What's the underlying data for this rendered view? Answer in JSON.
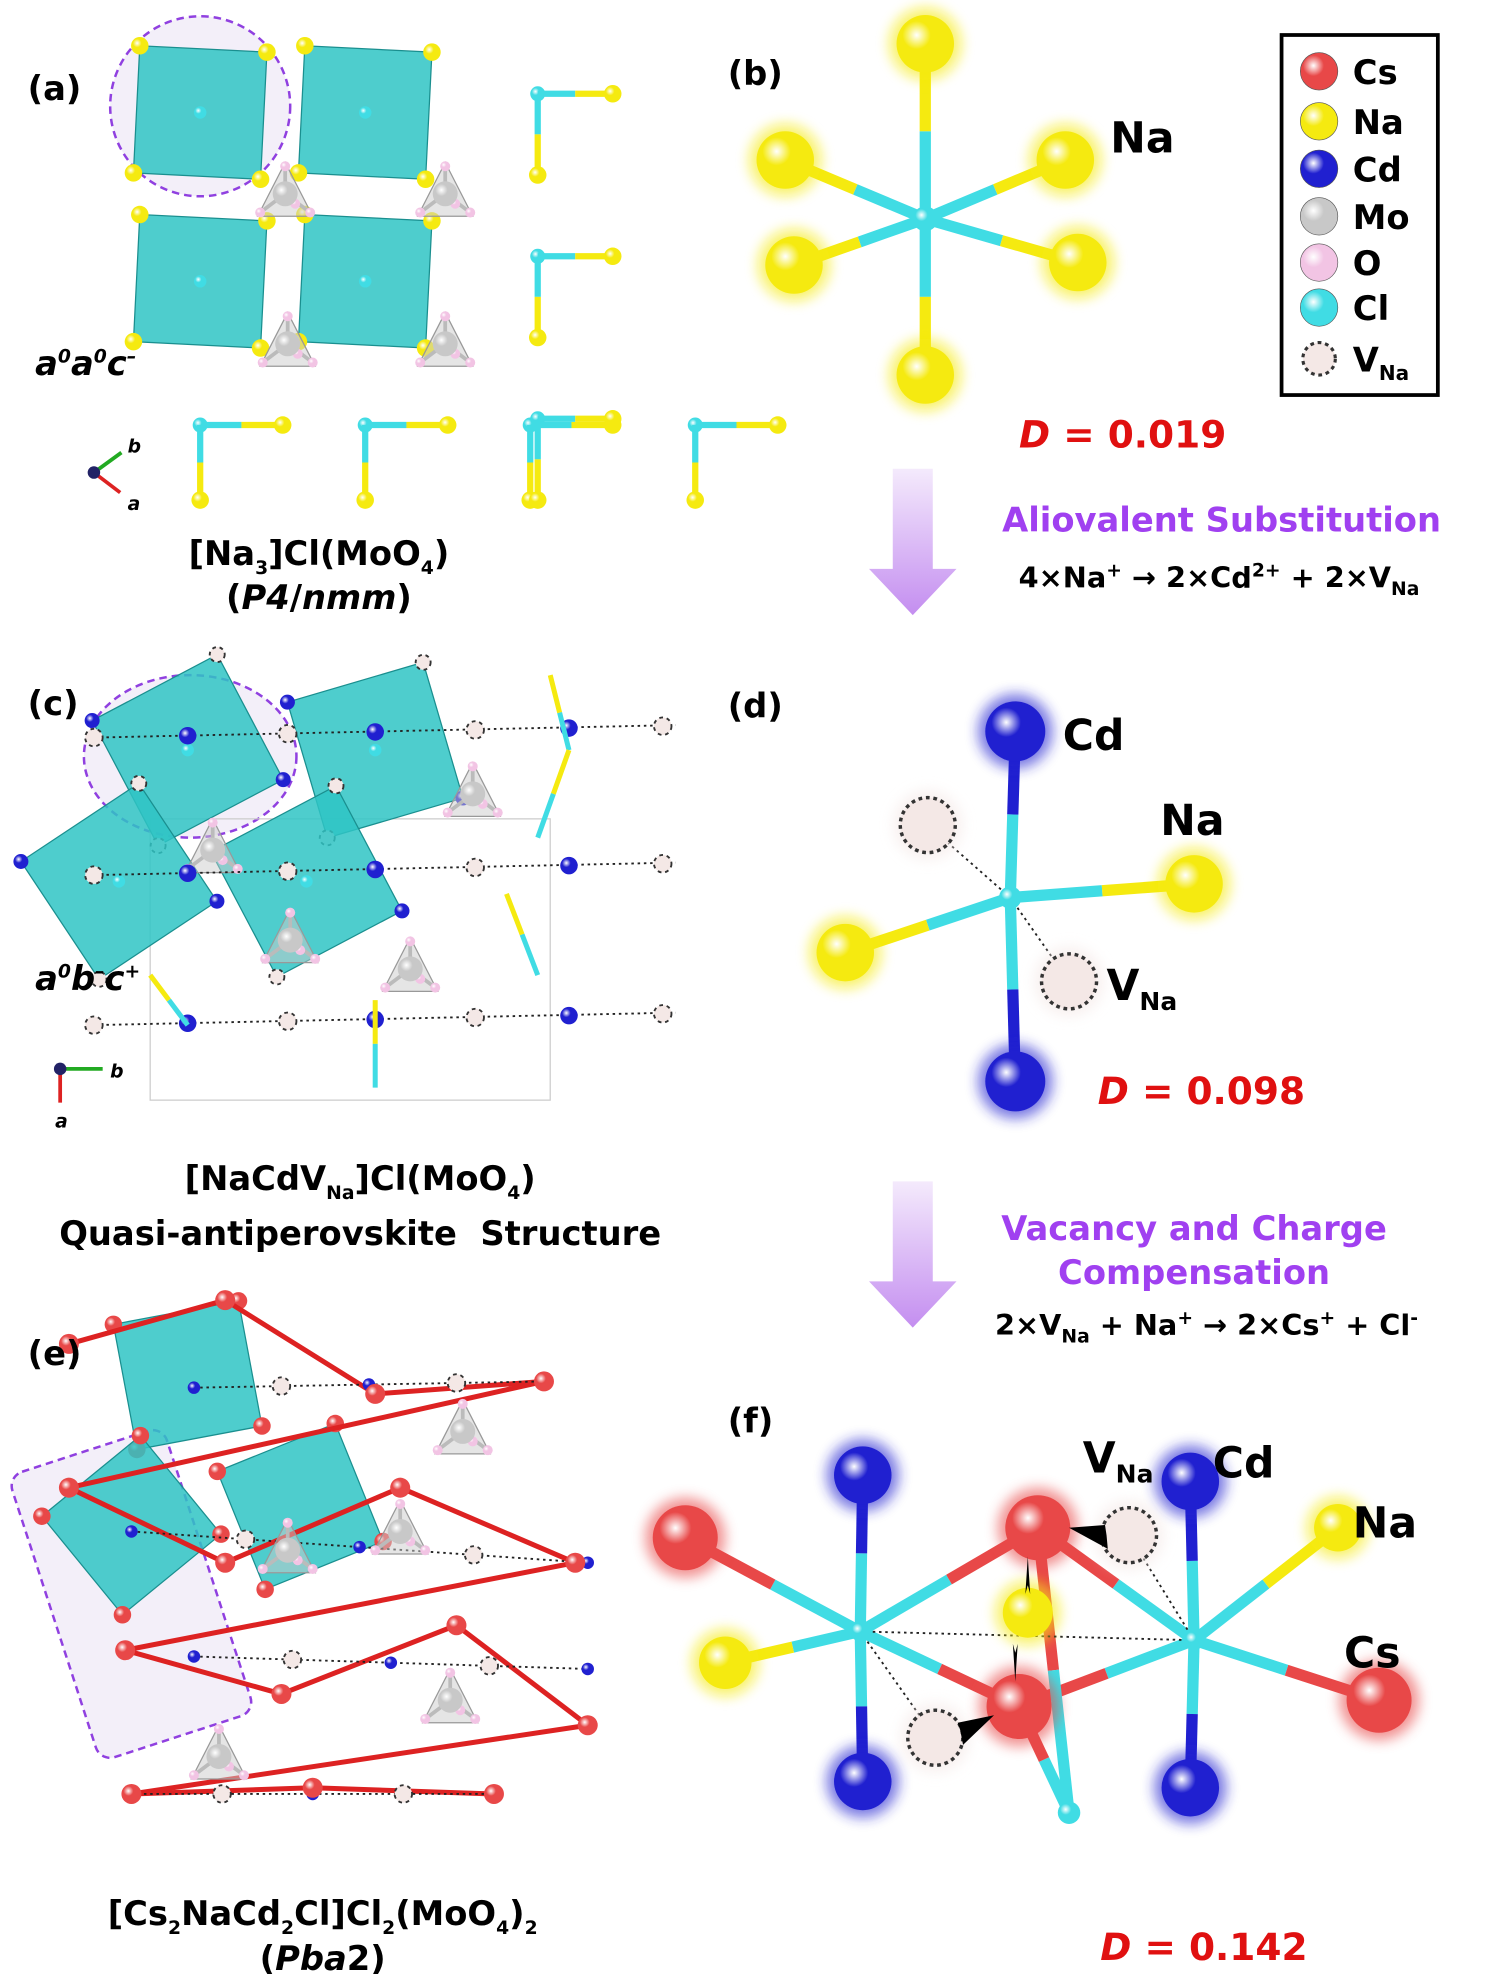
{
  "panels": {
    "a": {
      "label": "(a)",
      "tilt": [
        "a",
        "0",
        "a",
        "0",
        "c",
        "–"
      ],
      "formula": [
        "[Na",
        "3",
        "]Cl(MoO",
        "4",
        ")"
      ],
      "space_group": [
        "(",
        "P4",
        "/",
        "nmm",
        ")"
      ],
      "axes": [
        "b",
        "a"
      ]
    },
    "b": {
      "label": "(b)",
      "atom": "Na",
      "d_symbol": "D",
      "d_text": " = 0.019"
    },
    "c": {
      "label": "(c)",
      "tilt": [
        "a",
        "0",
        "b",
        "–",
        "c",
        "+"
      ],
      "formula": [
        "[NaCdV",
        "Na",
        "]Cl(MoO",
        "4",
        ")"
      ],
      "caption": "Quasi-antiperovskite  Structure",
      "axes": [
        "b",
        "a"
      ]
    },
    "d": {
      "label": "(d)",
      "atoms": [
        "Cd",
        "Na"
      ],
      "vacancy": [
        "V",
        "Na"
      ],
      "d_symbol": "D",
      "d_text": " = 0.098"
    },
    "e": {
      "label": "(e)",
      "formula": [
        "[Cs",
        "2",
        "NaCd",
        "2",
        "Cl]Cl",
        "2",
        "(MoO",
        "4",
        ")",
        "2"
      ],
      "space_group": [
        "(",
        "Pba",
        "2",
        ")"
      ]
    },
    "f": {
      "label": "(f)",
      "vacancy": [
        "V",
        "Na"
      ],
      "atoms": [
        "Cd",
        "Na",
        "Cs"
      ],
      "d_symbol": "D",
      "d_text": " = 0.142"
    }
  },
  "step1": {
    "title": "Aliovalent Substitution",
    "equation": [
      "4×Na",
      "+",
      " → 2×Cd",
      "2+",
      " + 2×V",
      "Na"
    ]
  },
  "step2": {
    "title": [
      "Vacancy and Charge",
      "Compensation"
    ],
    "equation": [
      "2×V",
      "Na",
      " + Na",
      "+",
      " → 2×Cs",
      "+",
      " + Cl",
      "-"
    ]
  },
  "legend": [
    {
      "name": "Cs",
      "color": "#e84848"
    },
    {
      "name": "Na",
      "color": "#f5ea10"
    },
    {
      "name": "Cd",
      "color": "#2020d0"
    },
    {
      "name": "Mo",
      "color": "#c8c8c8"
    },
    {
      "name": "O",
      "color": "#f2c4e4"
    },
    {
      "name": "Cl",
      "color": "#40dce4"
    },
    {
      "name": [
        "V",
        "Na"
      ],
      "color": "#f4e8e6"
    }
  ]
}
